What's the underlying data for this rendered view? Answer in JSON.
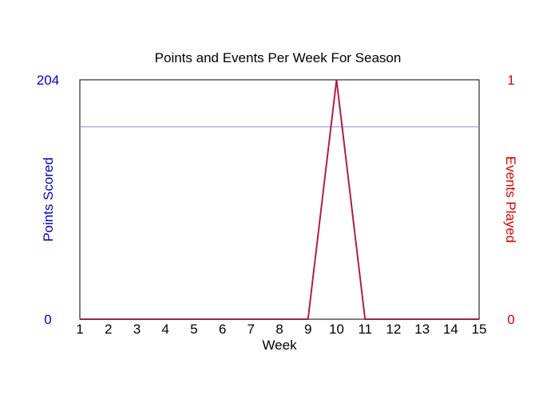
{
  "chart_data": {
    "type": "line",
    "title": "Points and Events Per Week For Season",
    "xlabel": "Week",
    "x": [
      "1",
      "2",
      "3",
      "4",
      "5",
      "6",
      "7",
      "8",
      "9",
      "10",
      "11",
      "12",
      "13",
      "14",
      "15"
    ],
    "y_left": {
      "label": "Points Scored",
      "range": [
        0,
        204
      ],
      "tick_labels": [
        "204",
        "0"
      ],
      "color": "#0000cc"
    },
    "y_right": {
      "label": "Events Played",
      "range": [
        0,
        1
      ],
      "tick_labels": [
        "1",
        "0"
      ],
      "color": "#dd0000"
    },
    "reference_line": {
      "axis": "left",
      "value": 164,
      "color": "#8888dd"
    },
    "series": [
      {
        "axis": "left",
        "color": "#0000cc",
        "values": [
          0,
          0,
          0,
          0,
          0,
          0,
          0,
          0,
          0,
          204,
          0,
          0,
          0,
          0,
          0
        ]
      },
      {
        "axis": "right",
        "color": "#dd0000",
        "values": [
          0,
          0,
          0,
          0,
          0,
          0,
          0,
          0,
          0,
          1,
          0,
          0,
          0,
          0,
          0
        ]
      }
    ],
    "grid": false
  }
}
